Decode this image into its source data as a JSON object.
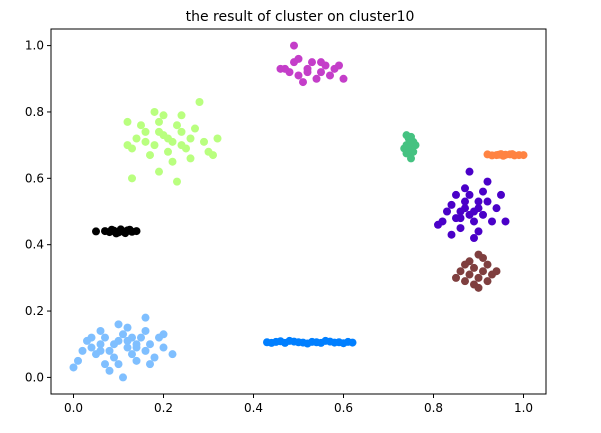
{
  "chart_data": {
    "type": "scatter",
    "title": "the result of cluster on cluster10",
    "xlabel": "",
    "ylabel": "",
    "xlim": [
      -0.05,
      1.05
    ],
    "ylim": [
      -0.05,
      1.05
    ],
    "xticks": [
      0.0,
      0.2,
      0.4,
      0.6,
      0.8,
      1.0
    ],
    "yticks": [
      0.0,
      0.2,
      0.4,
      0.6,
      0.8,
      1.0
    ],
    "xtick_labels": [
      "0.0",
      "0.2",
      "0.4",
      "0.6",
      "0.8",
      "1.0"
    ],
    "ytick_labels": [
      "0.0",
      "0.2",
      "0.4",
      "0.6",
      "0.8",
      "1.0"
    ],
    "grid": false,
    "legend": "none",
    "clusters": [
      {
        "color": "#c43ec9",
        "points": [
          [
            0.48,
            0.92
          ],
          [
            0.5,
            0.91
          ],
          [
            0.52,
            0.93
          ],
          [
            0.53,
            0.95
          ],
          [
            0.55,
            0.92
          ],
          [
            0.57,
            0.91
          ],
          [
            0.58,
            0.93
          ],
          [
            0.49,
            0.95
          ],
          [
            0.51,
            0.89
          ],
          [
            0.54,
            0.9
          ],
          [
            0.56,
            0.94
          ],
          [
            0.52,
            0.92
          ],
          [
            0.5,
            0.96
          ],
          [
            0.55,
            0.95
          ],
          [
            0.59,
            0.94
          ],
          [
            0.47,
            0.93
          ],
          [
            0.46,
            0.93
          ],
          [
            0.49,
            1.0
          ],
          [
            0.6,
            0.9
          ]
        ]
      },
      {
        "color": "#b9ff7f",
        "points": [
          [
            0.14,
            0.72
          ],
          [
            0.16,
            0.74
          ],
          [
            0.18,
            0.7
          ],
          [
            0.2,
            0.73
          ],
          [
            0.22,
            0.71
          ],
          [
            0.24,
            0.74
          ],
          [
            0.26,
            0.72
          ],
          [
            0.19,
            0.77
          ],
          [
            0.21,
            0.68
          ],
          [
            0.23,
            0.76
          ],
          [
            0.17,
            0.67
          ],
          [
            0.25,
            0.69
          ],
          [
            0.15,
            0.76
          ],
          [
            0.27,
            0.75
          ],
          [
            0.2,
            0.79
          ],
          [
            0.22,
            0.65
          ],
          [
            0.18,
            0.8
          ],
          [
            0.24,
            0.79
          ],
          [
            0.13,
            0.69
          ],
          [
            0.29,
            0.71
          ],
          [
            0.3,
            0.68
          ],
          [
            0.12,
            0.7
          ],
          [
            0.28,
            0.83
          ],
          [
            0.32,
            0.72
          ],
          [
            0.13,
            0.6
          ],
          [
            0.23,
            0.59
          ],
          [
            0.31,
            0.67
          ],
          [
            0.12,
            0.77
          ],
          [
            0.19,
            0.62
          ],
          [
            0.26,
            0.66
          ],
          [
            0.21,
            0.72
          ],
          [
            0.16,
            0.71
          ],
          [
            0.24,
            0.7
          ],
          [
            0.19,
            0.74
          ]
        ]
      },
      {
        "color": "#45c281",
        "points": [
          [
            0.74,
            0.7
          ],
          [
            0.745,
            0.72
          ],
          [
            0.75,
            0.68
          ],
          [
            0.755,
            0.71
          ],
          [
            0.74,
            0.73
          ],
          [
            0.75,
            0.66
          ],
          [
            0.745,
            0.69
          ],
          [
            0.76,
            0.7
          ],
          [
            0.735,
            0.69
          ],
          [
            0.75,
            0.725
          ],
          [
            0.755,
            0.68
          ],
          [
            0.74,
            0.675
          ],
          [
            0.746,
            0.705
          ]
        ]
      },
      {
        "color": "#ff8342",
        "points": [
          [
            0.92,
            0.672
          ],
          [
            0.94,
            0.67
          ],
          [
            0.96,
            0.671
          ],
          [
            0.98,
            0.669
          ],
          [
            0.99,
            0.67
          ],
          [
            0.95,
            0.673
          ],
          [
            0.93,
            0.669
          ],
          [
            0.97,
            0.672
          ],
          [
            1.0,
            0.67
          ],
          [
            0.955,
            0.668
          ],
          [
            0.975,
            0.673
          ],
          [
            0.945,
            0.671
          ]
        ]
      },
      {
        "color": "#000000",
        "points": [
          [
            0.05,
            0.44
          ],
          [
            0.07,
            0.441
          ],
          [
            0.08,
            0.438
          ],
          [
            0.09,
            0.442
          ],
          [
            0.1,
            0.437
          ],
          [
            0.11,
            0.44
          ],
          [
            0.12,
            0.443
          ],
          [
            0.13,
            0.439
          ],
          [
            0.14,
            0.441
          ],
          [
            0.085,
            0.445
          ],
          [
            0.095,
            0.434
          ],
          [
            0.105,
            0.446
          ],
          [
            0.115,
            0.435
          ],
          [
            0.125,
            0.445
          ]
        ]
      },
      {
        "color": "#4a00c8",
        "points": [
          [
            0.86,
            0.5
          ],
          [
            0.88,
            0.49
          ],
          [
            0.9,
            0.51
          ],
          [
            0.87,
            0.53
          ],
          [
            0.89,
            0.47
          ],
          [
            0.85,
            0.48
          ],
          [
            0.91,
            0.49
          ],
          [
            0.84,
            0.52
          ],
          [
            0.92,
            0.53
          ],
          [
            0.88,
            0.55
          ],
          [
            0.86,
            0.45
          ],
          [
            0.9,
            0.44
          ],
          [
            0.83,
            0.5
          ],
          [
            0.93,
            0.47
          ],
          [
            0.87,
            0.57
          ],
          [
            0.91,
            0.56
          ],
          [
            0.85,
            0.55
          ],
          [
            0.82,
            0.47
          ],
          [
            0.94,
            0.51
          ],
          [
            0.89,
            0.42
          ],
          [
            0.84,
            0.43
          ],
          [
            0.95,
            0.55
          ],
          [
            0.88,
            0.62
          ],
          [
            0.92,
            0.59
          ],
          [
            0.81,
            0.46
          ],
          [
            0.96,
            0.47
          ],
          [
            0.87,
            0.51
          ],
          [
            0.9,
            0.53
          ],
          [
            0.86,
            0.48
          ],
          [
            0.89,
            0.5
          ]
        ]
      },
      {
        "color": "#7f3f3f",
        "points": [
          [
            0.88,
            0.31
          ],
          [
            0.89,
            0.33
          ],
          [
            0.9,
            0.3
          ],
          [
            0.91,
            0.32
          ],
          [
            0.87,
            0.29
          ],
          [
            0.92,
            0.34
          ],
          [
            0.88,
            0.35
          ],
          [
            0.9,
            0.27
          ],
          [
            0.86,
            0.32
          ],
          [
            0.93,
            0.31
          ],
          [
            0.89,
            0.28
          ],
          [
            0.91,
            0.36
          ],
          [
            0.87,
            0.34
          ],
          [
            0.94,
            0.32
          ],
          [
            0.9,
            0.37
          ],
          [
            0.92,
            0.29
          ],
          [
            0.85,
            0.3
          ]
        ]
      },
      {
        "color": "#7fbfff",
        "points": [
          [
            0.04,
            0.09
          ],
          [
            0.06,
            0.1
          ],
          [
            0.08,
            0.08
          ],
          [
            0.1,
            0.11
          ],
          [
            0.12,
            0.09
          ],
          [
            0.14,
            0.1
          ],
          [
            0.16,
            0.08
          ],
          [
            0.07,
            0.12
          ],
          [
            0.09,
            0.06
          ],
          [
            0.11,
            0.13
          ],
          [
            0.13,
            0.07
          ],
          [
            0.15,
            0.12
          ],
          [
            0.05,
            0.07
          ],
          [
            0.17,
            0.1
          ],
          [
            0.03,
            0.11
          ],
          [
            0.18,
            0.06
          ],
          [
            0.02,
            0.08
          ],
          [
            0.06,
            0.14
          ],
          [
            0.1,
            0.04
          ],
          [
            0.12,
            0.15
          ],
          [
            0.16,
            0.14
          ],
          [
            0.01,
            0.05
          ],
          [
            0.19,
            0.12
          ],
          [
            0.14,
            0.05
          ],
          [
            0.08,
            0.02
          ],
          [
            0.0,
            0.03
          ],
          [
            0.2,
            0.09
          ],
          [
            0.22,
            0.07
          ],
          [
            0.1,
            0.16
          ],
          [
            0.16,
            0.18
          ],
          [
            0.07,
            0.04
          ],
          [
            0.2,
            0.13
          ],
          [
            0.04,
            0.12
          ],
          [
            0.13,
            0.12
          ],
          [
            0.11,
            0.0
          ],
          [
            0.17,
            0.04
          ],
          [
            0.09,
            0.1
          ],
          [
            0.12,
            0.11
          ],
          [
            0.06,
            0.08
          ],
          [
            0.14,
            0.09
          ]
        ]
      },
      {
        "color": "#007fff",
        "points": [
          [
            0.43,
            0.106
          ],
          [
            0.45,
            0.107
          ],
          [
            0.47,
            0.104
          ],
          [
            0.49,
            0.108
          ],
          [
            0.51,
            0.105
          ],
          [
            0.53,
            0.107
          ],
          [
            0.55,
            0.104
          ],
          [
            0.57,
            0.108
          ],
          [
            0.59,
            0.106
          ],
          [
            0.61,
            0.107
          ],
          [
            0.62,
            0.105
          ],
          [
            0.44,
            0.104
          ],
          [
            0.48,
            0.11
          ],
          [
            0.52,
            0.102
          ],
          [
            0.56,
            0.11
          ],
          [
            0.6,
            0.103
          ],
          [
            0.5,
            0.106
          ],
          [
            0.54,
            0.106
          ],
          [
            0.58,
            0.105
          ],
          [
            0.46,
            0.109
          ]
        ]
      }
    ]
  }
}
